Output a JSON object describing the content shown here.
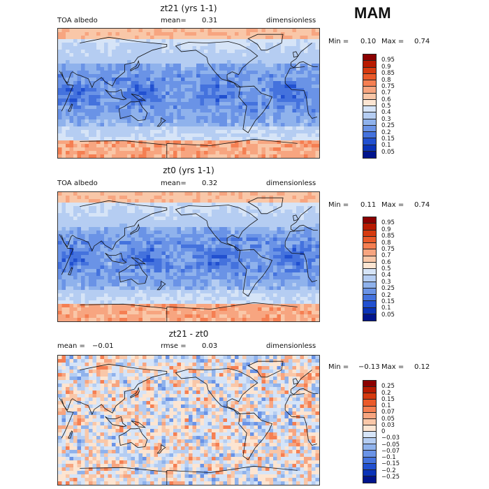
{
  "season": "MAM",
  "panels": [
    {
      "title": "zt21 (yrs 1-1)",
      "left_label": "TOA albedo",
      "mid_label": "mean=",
      "mid_value": "0.31",
      "right_label": "dimensionless",
      "min_label": "Min =",
      "min_value": "0.10",
      "max_label": "Max =",
      "max_value": "0.74",
      "colorbar_labels": [
        "0.95",
        "0.9",
        "0.85",
        "0.8",
        "0.75",
        "0.7",
        "0.6",
        "0.5",
        "0.4",
        "0.3",
        "0.25",
        "0.2",
        "0.15",
        "0.1",
        "0.05"
      ],
      "colorbar_colors": [
        "#8b0000",
        "#b81a00",
        "#d63a0f",
        "#ea5a2a",
        "#f57f52",
        "#f7a580",
        "#f9c7a8",
        "#fce5d2",
        "#d6e4f7",
        "#b5cdf2",
        "#8fb2ec",
        "#6a93e6",
        "#4472dd",
        "#2150d0",
        "#0a33b8",
        "#00148c"
      ]
    },
    {
      "title": "zt0 (yrs 1-1)",
      "left_label": "TOA albedo",
      "mid_label": "mean=",
      "mid_value": "0.32",
      "right_label": "dimensionless",
      "min_label": "Min =",
      "min_value": "0.11",
      "max_label": "Max =",
      "max_value": "0.74",
      "colorbar_labels": [
        "0.95",
        "0.9",
        "0.85",
        "0.8",
        "0.75",
        "0.7",
        "0.6",
        "0.5",
        "0.4",
        "0.3",
        "0.25",
        "0.2",
        "0.15",
        "0.1",
        "0.05"
      ],
      "colorbar_colors": [
        "#8b0000",
        "#b81a00",
        "#d63a0f",
        "#ea5a2a",
        "#f57f52",
        "#f7a580",
        "#f9c7a8",
        "#fce5d2",
        "#d6e4f7",
        "#b5cdf2",
        "#8fb2ec",
        "#6a93e6",
        "#4472dd",
        "#2150d0",
        "#0a33b8",
        "#00148c"
      ]
    },
    {
      "title": "zt21 - zt0",
      "left_label": "mean =",
      "left_value": "−0.01",
      "mid_label": "rmse =",
      "mid_value": "0.03",
      "right_label": "dimensionless",
      "min_label": "Min =",
      "min_value": "−0.13",
      "max_label": "Max =",
      "max_value": "0.12",
      "colorbar_labels": [
        "0.25",
        "0.2",
        "0.15",
        "0.1",
        "0.07",
        "0.05",
        "0.03",
        "0",
        "−0.03",
        "−0.05",
        "−0.07",
        "−0.1",
        "−0.15",
        "−0.2",
        "−0.25"
      ],
      "colorbar_colors": [
        "#8b0000",
        "#b81a00",
        "#d63a0f",
        "#ea5a2a",
        "#f57f52",
        "#f7a580",
        "#f9c7a8",
        "#fce5d2",
        "#d6e4f7",
        "#b5cdf2",
        "#8fb2ec",
        "#6a93e6",
        "#4472dd",
        "#2150d0",
        "#0a33b8",
        "#00148c"
      ]
    }
  ],
  "chart_data": [
    {
      "type": "heatmap",
      "title": "zt21 (yrs 1-1)",
      "variable": "TOA albedo",
      "units": "dimensionless",
      "mean": 0.31,
      "min": 0.1,
      "max": 0.74,
      "levels": [
        0.05,
        0.1,
        0.15,
        0.2,
        0.25,
        0.3,
        0.4,
        0.5,
        0.6,
        0.7,
        0.75,
        0.8,
        0.85,
        0.9,
        0.95
      ]
    },
    {
      "type": "heatmap",
      "title": "zt0 (yrs 1-1)",
      "variable": "TOA albedo",
      "units": "dimensionless",
      "mean": 0.32,
      "min": 0.11,
      "max": 0.74,
      "levels": [
        0.05,
        0.1,
        0.15,
        0.2,
        0.25,
        0.3,
        0.4,
        0.5,
        0.6,
        0.7,
        0.75,
        0.8,
        0.85,
        0.9,
        0.95
      ]
    },
    {
      "type": "heatmap",
      "title": "zt21 - zt0",
      "units": "dimensionless",
      "mean": -0.01,
      "rmse": 0.03,
      "min": -0.13,
      "max": 0.12,
      "levels": [
        -0.25,
        -0.2,
        -0.15,
        -0.1,
        -0.07,
        -0.05,
        -0.03,
        0,
        0.03,
        0.05,
        0.07,
        0.1,
        0.15,
        0.2,
        0.25
      ]
    }
  ]
}
